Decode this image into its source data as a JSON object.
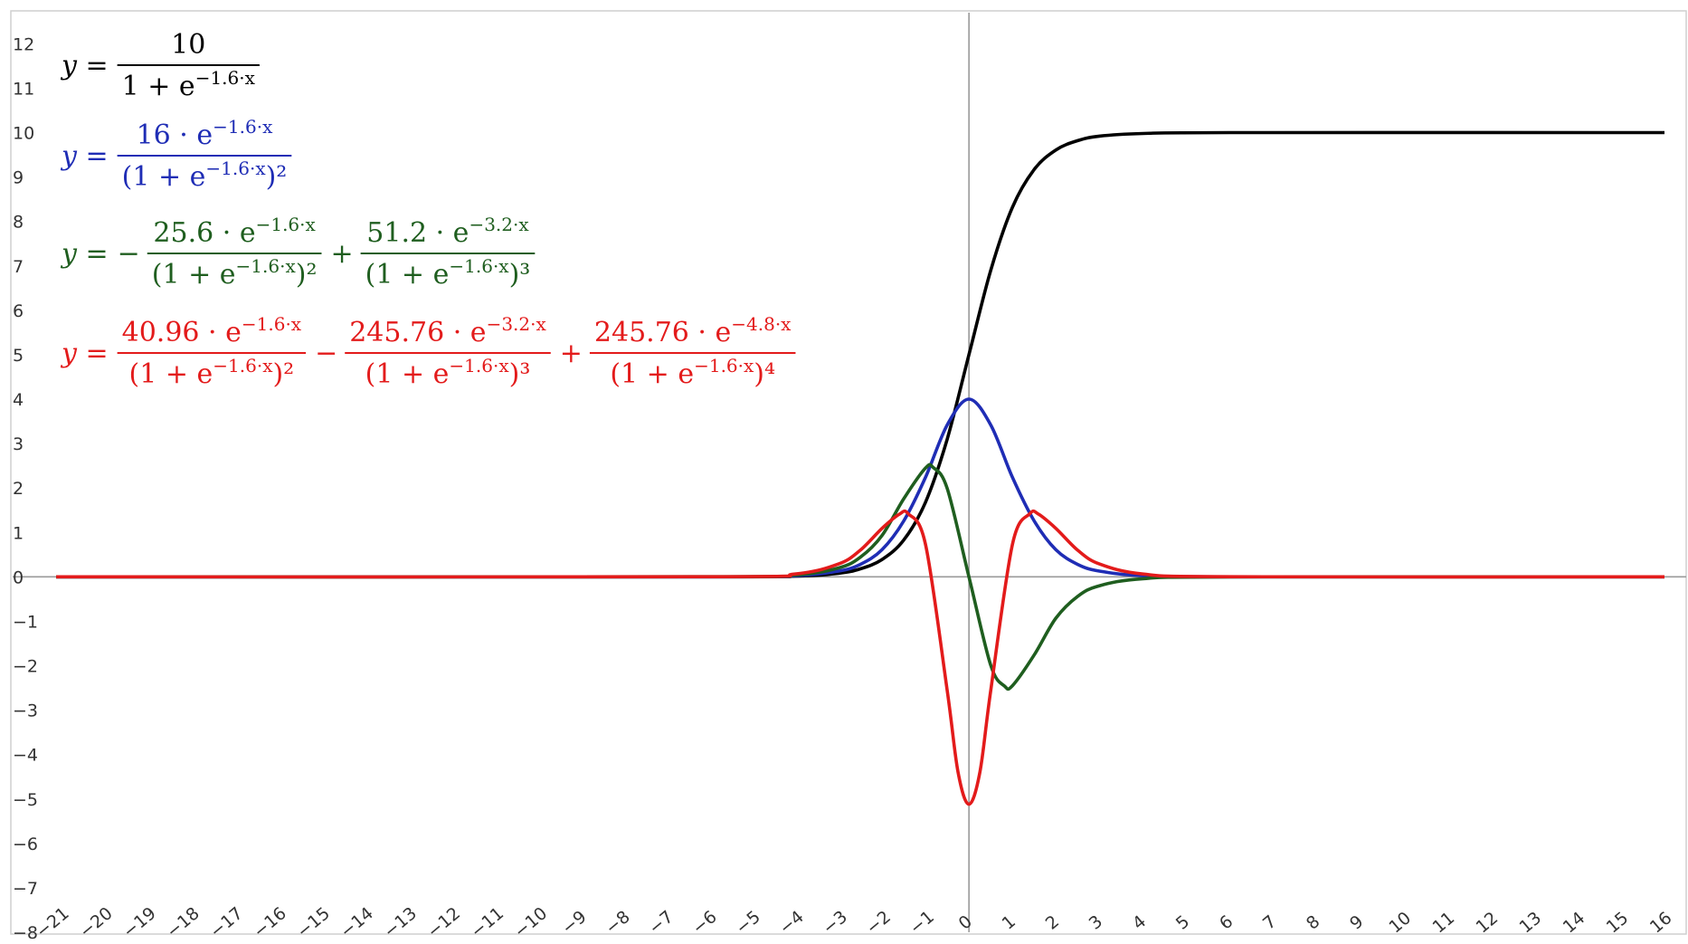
{
  "chart_data": {
    "type": "line",
    "xlim": [
      -22,
      16.5
    ],
    "ylim": [
      -8,
      12.7
    ],
    "x_ticks": [
      -21,
      -20,
      -19,
      -18,
      -17,
      -16,
      -15,
      -14,
      -13,
      -12,
      -11,
      -10,
      -9,
      -8,
      -7,
      -6,
      -5,
      -4,
      -3,
      -2,
      -1,
      0,
      1,
      2,
      3,
      4,
      5,
      6,
      7,
      8,
      9,
      10,
      11,
      12,
      13,
      14,
      15,
      16
    ],
    "y_ticks": [
      -8,
      -7,
      -6,
      -5,
      -4,
      -3,
      -2,
      -1,
      0,
      1,
      2,
      3,
      4,
      5,
      6,
      7,
      8,
      9,
      10,
      11,
      12
    ],
    "grid": false,
    "legend": "top-left",
    "series": [
      {
        "color": "#000000",
        "formula_parts": {
          "lead": "y =",
          "terms": [
            {
              "sign": "",
              "num": "10",
              "den": "1 + e^(−1.6·x)"
            }
          ]
        },
        "x": [
          -21,
          -6,
          -4,
          -3,
          -2.5,
          -2,
          -1.5,
          -1,
          -0.5,
          0,
          0.5,
          1,
          1.5,
          2,
          2.5,
          3,
          4,
          6,
          16
        ],
        "values": [
          0,
          0.0007,
          0.016,
          0.08,
          0.18,
          0.39,
          0.83,
          1.68,
          3.1,
          5,
          6.9,
          8.32,
          9.17,
          9.61,
          9.82,
          9.92,
          9.98,
          10,
          10
        ]
      },
      {
        "color": "#1f2db5",
        "formula_parts": {
          "lead": "y =",
          "terms": [
            {
              "sign": "",
              "num": "16 · e^(−1.6·x)",
              "den": "(1 + e^(−1.6·x))²"
            }
          ]
        },
        "x": [
          -21,
          -6,
          -4,
          -3,
          -2.5,
          -2,
          -1.5,
          -1,
          -0.5,
          0,
          0.5,
          1,
          1.5,
          2,
          2.5,
          3,
          4,
          6,
          16
        ],
        "values": [
          0,
          0.001,
          0.026,
          0.13,
          0.28,
          0.61,
          1.26,
          2.24,
          3.42,
          4,
          3.42,
          2.24,
          1.26,
          0.61,
          0.28,
          0.13,
          0.026,
          0.001,
          0
        ]
      },
      {
        "color": "#1f5e1f",
        "formula_parts": {
          "lead": "y =",
          "terms": [
            {
              "sign": "−",
              "num": "25.6 · e^(−1.6·x)",
              "den": "(1 + e^(−1.6·x))²"
            },
            {
              "sign": "+",
              "num": "51.2 · e^(−3.2·x)",
              "den": "(1 + e^(−1.6·x))³"
            }
          ]
        },
        "x": [
          -21,
          -6,
          -4,
          -3,
          -2.5,
          -2,
          -1.5,
          -1,
          -0.82,
          -0.5,
          0,
          0.5,
          0.82,
          1,
          1.5,
          2,
          2.5,
          3,
          4,
          6,
          16
        ],
        "values": [
          0,
          0.002,
          0.041,
          0.2,
          0.44,
          0.93,
          1.76,
          2.45,
          2.46,
          1.99,
          0,
          -1.99,
          -2.46,
          -2.45,
          -1.76,
          -0.93,
          -0.44,
          -0.2,
          -0.041,
          -0.002,
          0
        ]
      },
      {
        "color": "#e31b1b",
        "formula_parts": {
          "lead": "y =",
          "terms": [
            {
              "sign": "",
              "num": "40.96 · e^(−1.6·x)",
              "den": "(1 + e^(−1.6·x))²"
            },
            {
              "sign": "−",
              "num": "245.76 · e^(−3.2·x)",
              "den": "(1 + e^(−1.6·x))³"
            },
            {
              "sign": "+",
              "num": "245.76 · e^(−4.8·x)",
              "den": "(1 + e^(−1.6·x))⁴"
            }
          ]
        },
        "x": [
          -21,
          -6,
          -4,
          -3,
          -2.5,
          -2,
          -1.6,
          -1.4,
          -1,
          -0.5,
          -0.25,
          0,
          0.25,
          0.5,
          1,
          1.4,
          1.6,
          2,
          2.5,
          3,
          4,
          6,
          16
        ],
        "values": [
          0,
          0.003,
          0.065,
          0.29,
          0.6,
          1.09,
          1.41,
          1.42,
          0.73,
          -2.56,
          -4.4,
          -5.12,
          -4.4,
          -2.56,
          0.73,
          1.42,
          1.41,
          1.09,
          0.6,
          0.29,
          0.065,
          0.003,
          0
        ]
      }
    ]
  }
}
